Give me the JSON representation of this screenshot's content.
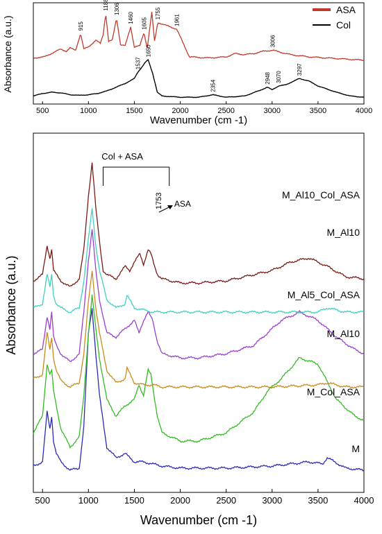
{
  "chart_data": [
    {
      "type": "line",
      "xlabel": "Wavenumber (cm -1)",
      "ylabel": "Absorbance (a.u.)",
      "xlim": [
        400,
        4000
      ],
      "x_ticks": [
        500,
        1000,
        1500,
        2000,
        2500,
        3000,
        3500,
        4000
      ],
      "legend_position": "top-right",
      "series": [
        {
          "name": "ASA",
          "color": "#c0392b",
          "x": [
            400,
            520,
            620,
            700,
            760,
            800,
            860,
            915,
            950,
            1000,
            1040,
            1080,
            1130,
            1160,
            1188,
            1220,
            1260,
            1306,
            1350,
            1400,
            1460,
            1500,
            1560,
            1605,
            1640,
            1690,
            1720,
            1755,
            1961,
            2100,
            2300,
            2500,
            2600,
            2700,
            2800,
            2900,
            3006,
            3100,
            3200,
            3400,
            3600,
            3800,
            4000
          ],
          "y": [
            0.18,
            0.2,
            0.28,
            0.34,
            0.3,
            0.36,
            0.32,
            0.62,
            0.34,
            0.38,
            0.44,
            0.5,
            0.44,
            0.6,
            0.98,
            0.48,
            0.5,
            0.9,
            0.42,
            0.4,
            0.74,
            0.38,
            0.4,
            0.64,
            0.36,
            1.0,
            0.48,
            0.82,
            0.7,
            0.2,
            0.18,
            0.2,
            0.26,
            0.24,
            0.26,
            0.3,
            0.32,
            0.28,
            0.24,
            0.2,
            0.18,
            0.16,
            0.14
          ],
          "peak_labels": [
            915,
            1188,
            1306,
            1460,
            1605,
            1755,
            1961,
            3006
          ]
        },
        {
          "name": "Col",
          "color": "#000000",
          "x": [
            400,
            500,
            600,
            700,
            800,
            900,
            1000,
            1100,
            1200,
            1300,
            1400,
            1450,
            1500,
            1537,
            1580,
            1620,
            1650,
            1700,
            1750,
            1800,
            2000,
            2200,
            2354,
            2500,
            2700,
            2850,
            2948,
            3000,
            3070,
            3150,
            3297,
            3400,
            3500,
            3700,
            3850,
            4000
          ],
          "y": [
            0.04,
            0.08,
            0.1,
            0.09,
            0.06,
            0.05,
            0.06,
            0.08,
            0.12,
            0.18,
            0.24,
            0.28,
            0.32,
            0.42,
            0.5,
            0.58,
            0.62,
            0.4,
            0.1,
            0.04,
            0.02,
            0.02,
            0.06,
            0.02,
            0.04,
            0.12,
            0.18,
            0.14,
            0.2,
            0.22,
            0.32,
            0.28,
            0.2,
            0.1,
            0.04,
            0.02
          ],
          "peak_labels": [
            1537,
            1650,
            2354,
            2948,
            3070,
            3297
          ]
        }
      ]
    },
    {
      "type": "line",
      "xlabel": "Wavenumber (cm -1)",
      "ylabel": "Absorbance (a.u.)",
      "xlim": [
        400,
        4000
      ],
      "x_ticks": [
        500,
        1000,
        1500,
        2000,
        2500,
        3000,
        3500,
        4000
      ],
      "annotations": [
        {
          "text": "Col + ASA",
          "type": "bracket",
          "x_start": 1160,
          "x_end": 1880
        },
        {
          "text": "1753",
          "type": "peak_label",
          "x": 1753
        },
        {
          "text": "ASA",
          "type": "arrow_label",
          "x": 1753
        }
      ],
      "series": [
        {
          "name": "M",
          "color": "#2a2ab8",
          "offset": 0.0,
          "x": [
            400,
            500,
            550,
            580,
            600,
            620,
            650,
            700,
            800,
            900,
            950,
            1000,
            1040,
            1080,
            1120,
            1200,
            1300,
            1400,
            1500,
            1600,
            1700,
            1800,
            2000,
            2500,
            3000,
            3200,
            3400,
            3550,
            3600,
            3800,
            4000
          ],
          "y": [
            0.06,
            0.08,
            0.32,
            0.24,
            0.3,
            0.18,
            0.12,
            0.08,
            0.04,
            0.05,
            0.25,
            0.7,
            0.82,
            0.6,
            0.4,
            0.15,
            0.1,
            0.12,
            0.08,
            0.08,
            0.07,
            0.06,
            0.05,
            0.05,
            0.06,
            0.07,
            0.08,
            0.07,
            0.1,
            0.05,
            0.04
          ]
        },
        {
          "name": "M_Col_ASA",
          "color": "#33bb22",
          "offset": 0.0,
          "x": [
            400,
            500,
            550,
            580,
            600,
            620,
            650,
            700,
            800,
            900,
            950,
            1000,
            1040,
            1080,
            1120,
            1200,
            1300,
            1400,
            1500,
            1550,
            1600,
            1650,
            1680,
            1750,
            1800,
            2000,
            2200,
            2500,
            2800,
            2950,
            3100,
            3300,
            3500,
            3700,
            3900,
            4000
          ],
          "y": [
            0.22,
            0.3,
            0.55,
            0.5,
            0.52,
            0.42,
            0.35,
            0.24,
            0.15,
            0.2,
            0.4,
            0.7,
            0.88,
            0.72,
            0.58,
            0.38,
            0.3,
            0.35,
            0.38,
            0.45,
            0.4,
            0.52,
            0.5,
            0.3,
            0.22,
            0.18,
            0.18,
            0.22,
            0.32,
            0.42,
            0.48,
            0.58,
            0.55,
            0.38,
            0.3,
            0.28
          ]
        },
        {
          "name": "M_Al10",
          "color": "#c98a1a",
          "offset": 0.0,
          "x": [
            400,
            500,
            550,
            580,
            600,
            620,
            650,
            700,
            800,
            900,
            950,
            1000,
            1040,
            1080,
            1120,
            1200,
            1300,
            1400,
            1420,
            1500,
            1600,
            1700,
            1800,
            2000,
            2500,
            3000,
            3500,
            3600,
            3800,
            4000
          ],
          "y": [
            0.48,
            0.5,
            0.7,
            0.62,
            0.68,
            0.58,
            0.52,
            0.47,
            0.44,
            0.46,
            0.6,
            0.85,
            1.0,
            0.82,
            0.7,
            0.52,
            0.46,
            0.48,
            0.53,
            0.46,
            0.45,
            0.45,
            0.44,
            0.44,
            0.44,
            0.44,
            0.45,
            0.46,
            0.44,
            0.44
          ]
        },
        {
          "name": "M_Al5_Col_ASA",
          "color": "#9b3fd0",
          "offset": 0.0,
          "x": [
            400,
            500,
            550,
            580,
            600,
            620,
            650,
            700,
            800,
            900,
            950,
            1000,
            1040,
            1080,
            1120,
            1200,
            1300,
            1400,
            1500,
            1550,
            1600,
            1650,
            1700,
            1750,
            1800,
            2000,
            2200,
            2500,
            2800,
            2950,
            3100,
            3300,
            3500,
            3700,
            3900,
            4000
          ],
          "y": [
            0.6,
            0.62,
            0.78,
            0.72,
            0.8,
            0.68,
            0.64,
            0.6,
            0.56,
            0.6,
            0.8,
            1.05,
            1.2,
            1.0,
            0.86,
            0.7,
            0.68,
            0.72,
            0.76,
            0.7,
            0.76,
            0.8,
            0.76,
            0.66,
            0.6,
            0.58,
            0.58,
            0.6,
            0.64,
            0.7,
            0.76,
            0.8,
            0.76,
            0.68,
            0.62,
            0.6
          ]
        },
        {
          "name": "M_Al10",
          "color": "#40d0c0",
          "offset": 0.0,
          "x": [
            400,
            500,
            550,
            580,
            600,
            620,
            650,
            700,
            800,
            900,
            950,
            1000,
            1040,
            1080,
            1120,
            1200,
            1300,
            1400,
            1420,
            1500,
            1600,
            1700,
            1800,
            2000,
            2500,
            3000,
            3500,
            3600,
            3800,
            4000
          ],
          "y": [
            0.82,
            0.84,
            0.98,
            0.92,
            0.98,
            0.88,
            0.84,
            0.82,
            0.8,
            0.82,
            0.95,
            1.15,
            1.3,
            1.12,
            1.0,
            0.86,
            0.82,
            0.84,
            0.88,
            0.82,
            0.81,
            0.8,
            0.8,
            0.8,
            0.8,
            0.8,
            0.8,
            0.82,
            0.8,
            0.8
          ]
        },
        {
          "name": "M_Al10_Col_ASA",
          "color": "#7a1a14",
          "offset": 0.0,
          "x": [
            400,
            500,
            550,
            580,
            600,
            620,
            650,
            700,
            800,
            900,
            950,
            1000,
            1040,
            1080,
            1120,
            1160,
            1200,
            1300,
            1400,
            1450,
            1500,
            1560,
            1600,
            1650,
            1680,
            1720,
            1753,
            1800,
            2000,
            2200,
            2500,
            2800,
            3000,
            3200,
            3400,
            3600,
            3800,
            4000
          ],
          "y": [
            0.95,
            0.98,
            1.12,
            1.06,
            1.1,
            1.0,
            0.98,
            0.95,
            0.92,
            0.96,
            1.1,
            1.36,
            1.52,
            1.3,
            1.14,
            1.0,
            0.98,
            0.96,
            1.02,
            1.0,
            1.04,
            1.08,
            1.03,
            1.1,
            1.08,
            1.02,
            0.98,
            0.96,
            0.94,
            0.94,
            0.95,
            0.98,
            1.0,
            1.04,
            1.06,
            1.02,
            0.97,
            0.96
          ]
        }
      ]
    }
  ]
}
